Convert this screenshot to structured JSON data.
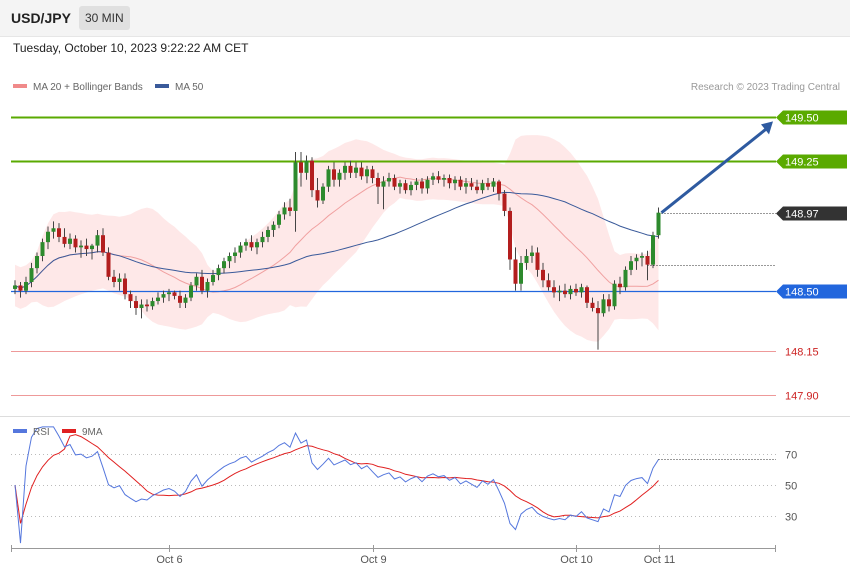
{
  "header": {
    "symbol": "USD/JPY",
    "timeframe": "30 MIN",
    "datetime": "Tuesday, October 10, 2023 9:22:22 AM CET"
  },
  "legend": {
    "ma20_label": "MA 20 + Bollinger Bands",
    "ma50_label": "MA 50",
    "copyright": "Research © 2023 Trading Central"
  },
  "rsi_legend": {
    "rsi_label": "RSI",
    "ma_label": "9MA"
  },
  "colors": {
    "bull": "#2d8a2d",
    "bear": "#b31e1e",
    "band": "#fde0e0",
    "ma20": "#f0a0a0",
    "ma50": "#3a5a9a",
    "resistance": "#5aaa00",
    "support_blue": "#2266dd",
    "support_red": "#ee9999",
    "rsi": "#5577dd",
    "rsi_ma": "#e02020",
    "arrow": "#2e5aa0",
    "current": "#333333"
  },
  "chart_data": [
    {
      "type": "candlestick",
      "candles": [
        [
          148.51,
          148.56,
          148.48,
          148.53
        ],
        [
          148.53,
          148.55,
          148.46,
          148.5
        ],
        [
          148.5,
          148.58,
          148.48,
          148.55
        ],
        [
          148.55,
          148.66,
          148.52,
          148.63
        ],
        [
          148.63,
          148.72,
          148.6,
          148.7
        ],
        [
          148.7,
          148.8,
          148.67,
          148.78
        ],
        [
          148.78,
          148.87,
          148.74,
          148.84
        ],
        [
          148.84,
          148.9,
          148.8,
          148.86
        ],
        [
          148.86,
          148.89,
          148.78,
          148.81
        ],
        [
          148.81,
          148.86,
          148.75,
          148.77
        ],
        [
          148.77,
          148.83,
          148.74,
          148.8
        ],
        [
          148.8,
          148.82,
          148.72,
          148.75
        ],
        [
          148.75,
          148.79,
          148.69,
          148.76
        ],
        [
          148.76,
          148.8,
          148.7,
          148.74
        ],
        [
          148.74,
          148.77,
          148.68,
          148.76
        ],
        [
          148.76,
          148.85,
          148.72,
          148.82
        ],
        [
          148.82,
          148.86,
          148.7,
          148.72
        ],
        [
          148.72,
          148.75,
          148.56,
          148.58
        ],
        [
          148.58,
          148.62,
          148.52,
          148.55
        ],
        [
          148.55,
          148.6,
          148.5,
          148.57
        ],
        [
          148.57,
          148.6,
          148.45,
          148.48
        ],
        [
          148.48,
          148.5,
          148.4,
          148.44
        ],
        [
          148.44,
          148.47,
          148.36,
          148.4
        ],
        [
          148.4,
          148.45,
          148.34,
          148.42
        ],
        [
          148.42,
          148.45,
          148.38,
          148.41
        ],
        [
          148.41,
          148.46,
          148.39,
          148.44
        ],
        [
          148.44,
          148.49,
          148.42,
          148.46
        ],
        [
          148.46,
          148.5,
          148.43,
          148.48
        ],
        [
          148.48,
          148.51,
          148.44,
          148.49
        ],
        [
          148.49,
          148.5,
          148.45,
          148.47
        ],
        [
          148.47,
          148.5,
          148.4,
          148.43
        ],
        [
          148.43,
          148.48,
          148.4,
          148.46
        ],
        [
          148.46,
          148.55,
          148.44,
          148.53
        ],
        [
          148.53,
          148.6,
          148.5,
          148.58
        ],
        [
          148.58,
          148.62,
          148.48,
          148.5
        ],
        [
          148.5,
          148.57,
          148.46,
          148.55
        ],
        [
          148.55,
          148.62,
          148.53,
          148.59
        ],
        [
          148.59,
          148.65,
          148.56,
          148.63
        ],
        [
          148.63,
          148.69,
          148.6,
          148.67
        ],
        [
          148.67,
          148.72,
          148.63,
          148.7
        ],
        [
          148.7,
          148.75,
          148.66,
          148.72
        ],
        [
          148.72,
          148.78,
          148.69,
          148.76
        ],
        [
          148.76,
          148.8,
          148.73,
          148.78
        ],
        [
          148.78,
          148.82,
          148.73,
          148.75
        ],
        [
          148.75,
          148.8,
          148.71,
          148.78
        ],
        [
          148.78,
          148.84,
          148.75,
          148.81
        ],
        [
          148.81,
          148.87,
          148.78,
          148.85
        ],
        [
          148.85,
          148.9,
          148.81,
          148.88
        ],
        [
          148.88,
          148.96,
          148.86,
          148.94
        ],
        [
          148.94,
          149.01,
          148.91,
          148.98
        ],
        [
          148.98,
          149.03,
          148.93,
          148.96
        ],
        [
          148.96,
          149.3,
          148.84,
          149.24
        ],
        [
          149.24,
          149.3,
          149.1,
          149.18
        ],
        [
          149.18,
          149.28,
          149.14,
          149.25
        ],
        [
          149.25,
          149.27,
          149.04,
          149.08
        ],
        [
          149.08,
          149.15,
          148.98,
          149.02
        ],
        [
          149.02,
          149.12,
          149.0,
          149.1
        ],
        [
          149.1,
          149.22,
          149.07,
          149.2
        ],
        [
          149.2,
          149.24,
          149.1,
          149.14
        ],
        [
          149.14,
          149.2,
          149.1,
          149.18
        ],
        [
          149.18,
          149.24,
          149.14,
          149.22
        ],
        [
          149.22,
          149.25,
          149.15,
          149.18
        ],
        [
          149.18,
          149.24,
          149.15,
          149.21
        ],
        [
          149.21,
          149.24,
          149.14,
          149.16
        ],
        [
          149.16,
          149.22,
          149.12,
          149.2
        ],
        [
          149.2,
          149.22,
          149.12,
          149.15
        ],
        [
          149.15,
          149.18,
          149.0,
          149.1
        ],
        [
          149.1,
          149.16,
          148.97,
          149.13
        ],
        [
          149.13,
          149.18,
          149.1,
          149.15
        ],
        [
          149.15,
          149.17,
          149.08,
          149.1
        ],
        [
          149.1,
          149.14,
          149.06,
          149.12
        ],
        [
          149.12,
          149.14,
          149.06,
          149.08
        ],
        [
          149.08,
          149.13,
          149.05,
          149.11
        ],
        [
          149.11,
          149.15,
          149.08,
          149.13
        ],
        [
          149.13,
          149.15,
          149.06,
          149.09
        ],
        [
          149.09,
          149.16,
          149.06,
          149.14
        ],
        [
          149.14,
          149.18,
          149.11,
          149.16
        ],
        [
          149.16,
          149.19,
          149.12,
          149.14
        ],
        [
          149.14,
          149.17,
          149.1,
          149.15
        ],
        [
          149.15,
          149.17,
          149.09,
          149.12
        ],
        [
          149.12,
          149.16,
          149.08,
          149.14
        ],
        [
          149.14,
          149.16,
          149.08,
          149.1
        ],
        [
          149.1,
          149.15,
          149.06,
          149.12
        ],
        [
          149.12,
          149.15,
          149.08,
          149.1
        ],
        [
          149.1,
          149.14,
          149.06,
          149.08
        ],
        [
          149.08,
          149.14,
          149.06,
          149.12
        ],
        [
          149.12,
          149.15,
          149.08,
          149.1
        ],
        [
          149.1,
          149.15,
          149.07,
          149.13
        ],
        [
          149.13,
          149.14,
          149.02,
          149.06
        ],
        [
          149.06,
          149.08,
          148.93,
          148.96
        ],
        [
          148.96,
          148.98,
          148.62,
          148.68
        ],
        [
          148.68,
          148.75,
          148.5,
          148.54
        ],
        [
          148.54,
          148.7,
          148.5,
          148.66
        ],
        [
          148.66,
          148.74,
          148.62,
          148.7
        ],
        [
          148.7,
          148.76,
          148.66,
          148.72
        ],
        [
          148.72,
          148.75,
          148.58,
          148.62
        ],
        [
          148.62,
          148.66,
          148.52,
          148.56
        ],
        [
          148.56,
          148.6,
          148.5,
          148.52
        ],
        [
          148.52,
          148.56,
          148.46,
          148.49
        ],
        [
          148.49,
          148.53,
          148.44,
          148.5
        ],
        [
          148.5,
          148.54,
          148.46,
          148.48
        ],
        [
          148.48,
          148.53,
          148.45,
          148.51
        ],
        [
          148.51,
          148.54,
          148.47,
          148.49
        ],
        [
          148.49,
          148.54,
          148.46,
          148.52
        ],
        [
          148.52,
          148.53,
          148.4,
          148.43
        ],
        [
          148.43,
          148.46,
          148.38,
          148.4
        ],
        [
          148.4,
          148.44,
          148.16,
          148.37
        ],
        [
          148.37,
          148.48,
          148.35,
          148.45
        ],
        [
          148.45,
          148.48,
          148.38,
          148.41
        ],
        [
          148.41,
          148.56,
          148.39,
          148.54
        ],
        [
          148.54,
          148.58,
          148.48,
          148.52
        ],
        [
          148.52,
          148.64,
          148.5,
          148.62
        ],
        [
          148.62,
          148.7,
          148.59,
          148.67
        ],
        [
          148.67,
          148.71,
          148.62,
          148.69
        ],
        [
          148.69,
          148.72,
          148.64,
          148.7
        ],
        [
          148.7,
          148.73,
          148.56,
          148.65
        ],
        [
          148.65,
          148.84,
          148.63,
          148.82
        ],
        [
          148.82,
          148.98,
          148.8,
          148.95
        ]
      ],
      "current_price": "148.97",
      "levels": [
        {
          "label": "149.50",
          "price": 149.5,
          "role": "resistance"
        },
        {
          "label": "149.25",
          "price": 149.25,
          "role": "resistance"
        },
        {
          "label": "148.50",
          "price": 148.5,
          "role": "support"
        },
        {
          "label": "148.15",
          "price": 148.15,
          "role": "support"
        },
        {
          "label": "147.90",
          "price": 147.9,
          "role": "support"
        }
      ],
      "target_price": 149.5,
      "overlays": [
        "MA 20 + Bollinger Bands",
        "MA 50"
      ],
      "x_tick_labels": [
        {
          "label": "Oct 6",
          "index": 28
        },
        {
          "label": "Oct 9",
          "index": 65
        },
        {
          "label": "Oct 10",
          "index": 102
        },
        {
          "label": "Oct 11",
          "index": 117
        }
      ]
    },
    {
      "type": "line",
      "title": "RSI",
      "ylim": [
        10,
        90
      ],
      "y_tick_labels": [
        "70",
        "50",
        "30"
      ],
      "y_ticks": [
        70,
        50,
        30
      ],
      "current_rsi": 67
    }
  ]
}
